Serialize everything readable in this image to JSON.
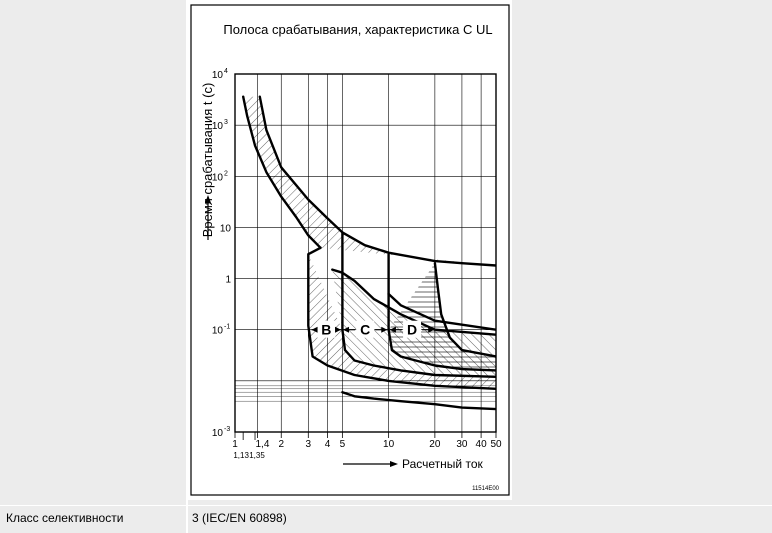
{
  "property": {
    "label": "Класс селективности",
    "value": "3 (IEC/EN 60898)"
  },
  "chart_data": {
    "type": "line",
    "title": "Полоса срабатывания, характеристика C UL",
    "xlabel": "Расчетный ток",
    "ylabel": "Время срабатывания t (с)",
    "x_scale": "log",
    "y_scale": "log",
    "xlim": [
      1,
      50
    ],
    "ylim": [
      0.001,
      10000
    ],
    "grid": true,
    "x_ticks": [
      "1",
      "1,4",
      "2",
      "3",
      "4",
      "5",
      "10",
      "20",
      "30",
      "40",
      "50"
    ],
    "x_ticks_extra": [
      "1,13",
      "1,35"
    ],
    "y_ticks": [
      "10^-3",
      "",
      "10^-1",
      "1",
      "10",
      "10^2",
      "10^3",
      "10^4"
    ],
    "y_tick_base": "10",
    "y_tick_exponents": [
      "-3",
      "",
      "-1",
      "",
      "",
      "2",
      "3",
      "4"
    ],
    "band_labels": [
      "B",
      "C",
      "D"
    ],
    "figure_id": "11514E00",
    "series": [
      {
        "role": "thermal-lower",
        "x": [
          1.13,
          1.2,
          1.35,
          1.6,
          2,
          2.5,
          3,
          3.6
        ],
        "y": [
          3600,
          1500,
          400,
          120,
          40,
          16,
          7,
          4
        ]
      },
      {
        "role": "thermal-upper",
        "x": [
          1.45,
          1.6,
          2,
          3,
          4,
          5,
          7,
          10,
          20,
          30,
          50
        ],
        "y": [
          3600,
          800,
          150,
          35,
          15,
          8,
          4.5,
          3.2,
          2.2,
          2.0,
          1.8
        ]
      },
      {
        "role": "B-curve",
        "x": [
          3.6,
          3,
          3,
          3.2,
          4,
          6,
          10,
          20,
          50
        ],
        "y": [
          4,
          3,
          0.12,
          0.03,
          0.02,
          0.013,
          0.01,
          0.008,
          0.007
        ]
      },
      {
        "role": "C-curve",
        "x": [
          5,
          5,
          5.2,
          6,
          8,
          12,
          20,
          50
        ],
        "y": [
          8,
          0.1,
          0.04,
          0.025,
          0.02,
          0.016,
          0.013,
          0.012
        ]
      },
      {
        "role": "D-curve",
        "x": [
          10,
          10,
          10.5,
          12,
          15,
          20,
          30,
          50
        ],
        "y": [
          3,
          0.1,
          0.04,
          0.03,
          0.025,
          0.02,
          0.017,
          0.016
        ]
      },
      {
        "role": "B-C-limit",
        "x": [
          4.3,
          5,
          6,
          8,
          12,
          20,
          50
        ],
        "y": [
          1.5,
          1.3,
          0.9,
          0.4,
          0.2,
          0.1,
          0.08
        ]
      },
      {
        "role": "C-D-limit",
        "x": [
          10,
          12,
          20,
          50
        ],
        "y": [
          0.5,
          0.3,
          0.15,
          0.1
        ]
      },
      {
        "role": "D-right",
        "x": [
          20,
          21,
          22,
          25,
          30,
          50
        ],
        "y": [
          2,
          0.6,
          0.2,
          0.07,
          0.04,
          0.03
        ]
      },
      {
        "role": "inst-lower",
        "x": [
          5,
          6,
          8,
          12,
          20,
          30,
          50
        ],
        "y": [
          0.006,
          0.005,
          0.0045,
          0.004,
          0.0035,
          0.003,
          0.0028
        ]
      }
    ]
  }
}
